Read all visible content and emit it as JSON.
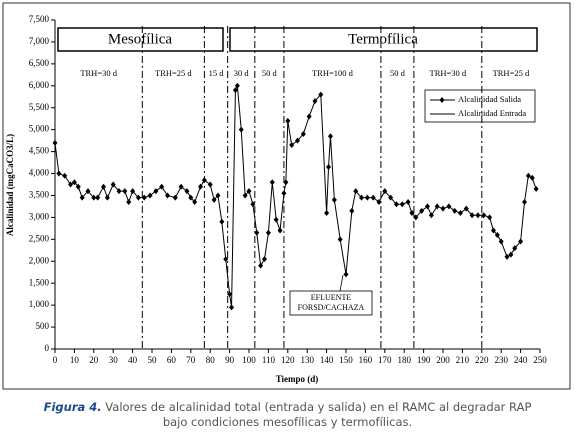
{
  "chart_data": {
    "type": "line",
    "x_label": "Tiempo (d)",
    "y_label": "Alcalinidad (mgCaCO3/L)",
    "xlim": [
      0,
      250
    ],
    "xticks": [
      0,
      10,
      20,
      30,
      40,
      50,
      60,
      70,
      80,
      90,
      100,
      110,
      120,
      130,
      140,
      150,
      160,
      170,
      180,
      190,
      200,
      210,
      220,
      230,
      240,
      250
    ],
    "ylim": [
      0,
      7500
    ],
    "yticks": [
      0,
      500,
      {
        "value": 1000,
        "label": "1,000"
      },
      {
        "value": 1500,
        "label": "1,500"
      },
      {
        "value": 2000,
        "label": "2,000"
      },
      {
        "value": 2500,
        "label": "2,500"
      },
      {
        "value": 3000,
        "label": "3,000"
      },
      {
        "value": 3500,
        "label": "3,500"
      },
      {
        "value": 4000,
        "label": "4,000"
      },
      {
        "value": 4500,
        "label": "4,500"
      },
      {
        "value": 5000,
        "label": "5,000"
      },
      {
        "value": 5500,
        "label": "5,500"
      },
      {
        "value": 6000,
        "label": "6,000"
      },
      {
        "value": 6500,
        "label": "6,500"
      },
      {
        "value": 7000,
        "label": "7,000"
      },
      {
        "value": 7500,
        "label": "7,500"
      }
    ],
    "periods": [
      "Mesofílica",
      "Termofílica"
    ],
    "phase_boundaries": [
      45,
      77,
      89,
      103,
      118,
      168,
      185,
      220
    ],
    "phases": [
      "TRH=30 d",
      "TRH=25 d",
      "15 d",
      "30 d",
      "50 d",
      "TRH=100 d",
      "50 d",
      "TRH=30 d",
      "TRH=25 d"
    ],
    "annotation": [
      "EFLUENTE",
      "FORSD/CACHAZA"
    ],
    "series": [
      {
        "name": "Alcalinidad Salida",
        "color": "#000000",
        "x": [
          0,
          2,
          5,
          8,
          10,
          12,
          14,
          17,
          20,
          22,
          25,
          27,
          30,
          33,
          36,
          38,
          40,
          43,
          46,
          49,
          52,
          55,
          58,
          62,
          65,
          68,
          70,
          72,
          75,
          77,
          80,
          82,
          84,
          86,
          88,
          90,
          91,
          93,
          94,
          96,
          98,
          100,
          102,
          104,
          106,
          108,
          110,
          112,
          114,
          116,
          118,
          119,
          120,
          122,
          125,
          128,
          131,
          134,
          137,
          140,
          141,
          142,
          144,
          147,
          150,
          153,
          155,
          158,
          161,
          164,
          167,
          170,
          173,
          176,
          179,
          182,
          184,
          186,
          189,
          192,
          194,
          197,
          200,
          203,
          206,
          209,
          212,
          215,
          218,
          221,
          224,
          226,
          228,
          230,
          233,
          235,
          237,
          240,
          242,
          244,
          246,
          248
        ],
        "values": [
          4700,
          4000,
          3950,
          3750,
          3800,
          3700,
          3450,
          3600,
          3450,
          3450,
          3700,
          3450,
          3750,
          3600,
          3600,
          3350,
          3600,
          3450,
          3450,
          3500,
          3600,
          3700,
          3500,
          3450,
          3700,
          3600,
          3450,
          3350,
          3700,
          3850,
          3750,
          3400,
          3500,
          2900,
          2050,
          1250,
          950,
          5900,
          6000,
          5000,
          3500,
          3600,
          3300,
          2650,
          1900,
          2050,
          2650,
          3800,
          2950,
          2700,
          3550,
          3800,
          5200,
          4650,
          4750,
          4900,
          5300,
          5650,
          5800,
          3100,
          4150,
          4850,
          3400,
          2500,
          1700,
          3150,
          3600,
          3450,
          3450,
          3450,
          3350,
          3600,
          3450,
          3300,
          3300,
          3350,
          3100,
          3000,
          3150,
          3250,
          3050,
          3250,
          3200,
          3250,
          3150,
          3100,
          3200,
          3050,
          3050,
          3050,
          3000,
          2700,
          2600,
          2450,
          2100,
          2150,
          2300,
          2450,
          3350,
          3950,
          3900,
          3650
        ]
      },
      {
        "name": "Alcalinidad Entrada",
        "color": "#000000",
        "x": [],
        "values": []
      }
    ],
    "caption": {
      "label": "Figura 4.",
      "lines": [
        "Valores de alcalinidad total (entrada y salida) en el RAMC al degradar RAP",
        "bajo condiciones mesofílicas y termofílicas."
      ]
    }
  }
}
